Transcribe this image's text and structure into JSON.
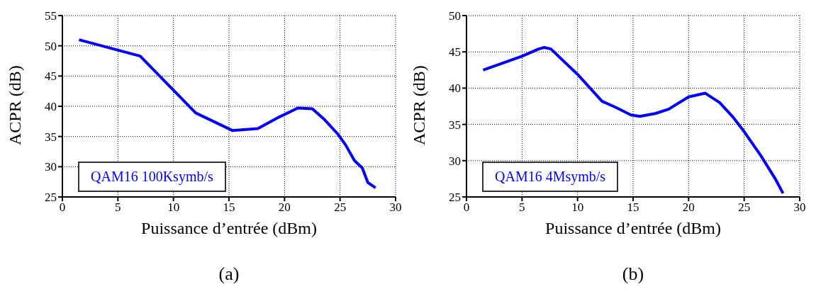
{
  "chart_data": [
    {
      "type": "line",
      "xlabel": "Puissance d’entrée (dBm)",
      "ylabel": "ACPR (dB)",
      "annotations": [
        "QAM16 100Ksymb/s",
        "(a)"
      ],
      "xlim": [
        0,
        30
      ],
      "xticks": [
        0,
        5,
        10,
        15,
        20,
        25,
        30
      ],
      "ylim": [
        25,
        55
      ],
      "yticks": [
        25,
        30,
        35,
        40,
        45,
        50,
        55
      ],
      "grid": true,
      "marker": "none",
      "series": [
        {
          "color": "#0000ff",
          "x": [
            1.5,
            7,
            12,
            15.3,
            17.6,
            19.5,
            21.2,
            22.5,
            23.6,
            24.8,
            25.5,
            26.3,
            27,
            27.5,
            28.2
          ],
          "values": [
            51,
            48.3,
            38.9,
            36,
            36.3,
            38.2,
            39.7,
            39.6,
            37.8,
            35.4,
            33.6,
            31,
            29.8,
            27.4,
            26.5
          ]
        }
      ]
    },
    {
      "type": "line",
      "xlabel": "Puissance d’entrée (dBm)",
      "ylabel": "ACPR (dB)",
      "annotations": [
        "QAM16 4Msymb/s",
        "(b)"
      ],
      "xlim": [
        0,
        30
      ],
      "xticks": [
        0,
        5,
        10,
        15,
        20,
        25,
        30
      ],
      "ylim": [
        25,
        50
      ],
      "yticks": [
        25,
        30,
        35,
        40,
        45,
        50
      ],
      "grid": true,
      "marker": "none",
      "series": [
        {
          "color": "#0000ff",
          "x": [
            1.5,
            5,
            6.5,
            7,
            7.6,
            10,
            12.2,
            13.5,
            14.8,
            15.6,
            17,
            18.2,
            20,
            21.5,
            22.8,
            24,
            25,
            26.5,
            27.8,
            28.5
          ],
          "values": [
            42.5,
            44.4,
            45.4,
            45.6,
            45.4,
            41.9,
            38.2,
            37.3,
            36.3,
            36.1,
            36.5,
            37.1,
            38.8,
            39.3,
            38,
            36,
            34,
            30.7,
            27.5,
            25.5
          ]
        }
      ]
    }
  ]
}
